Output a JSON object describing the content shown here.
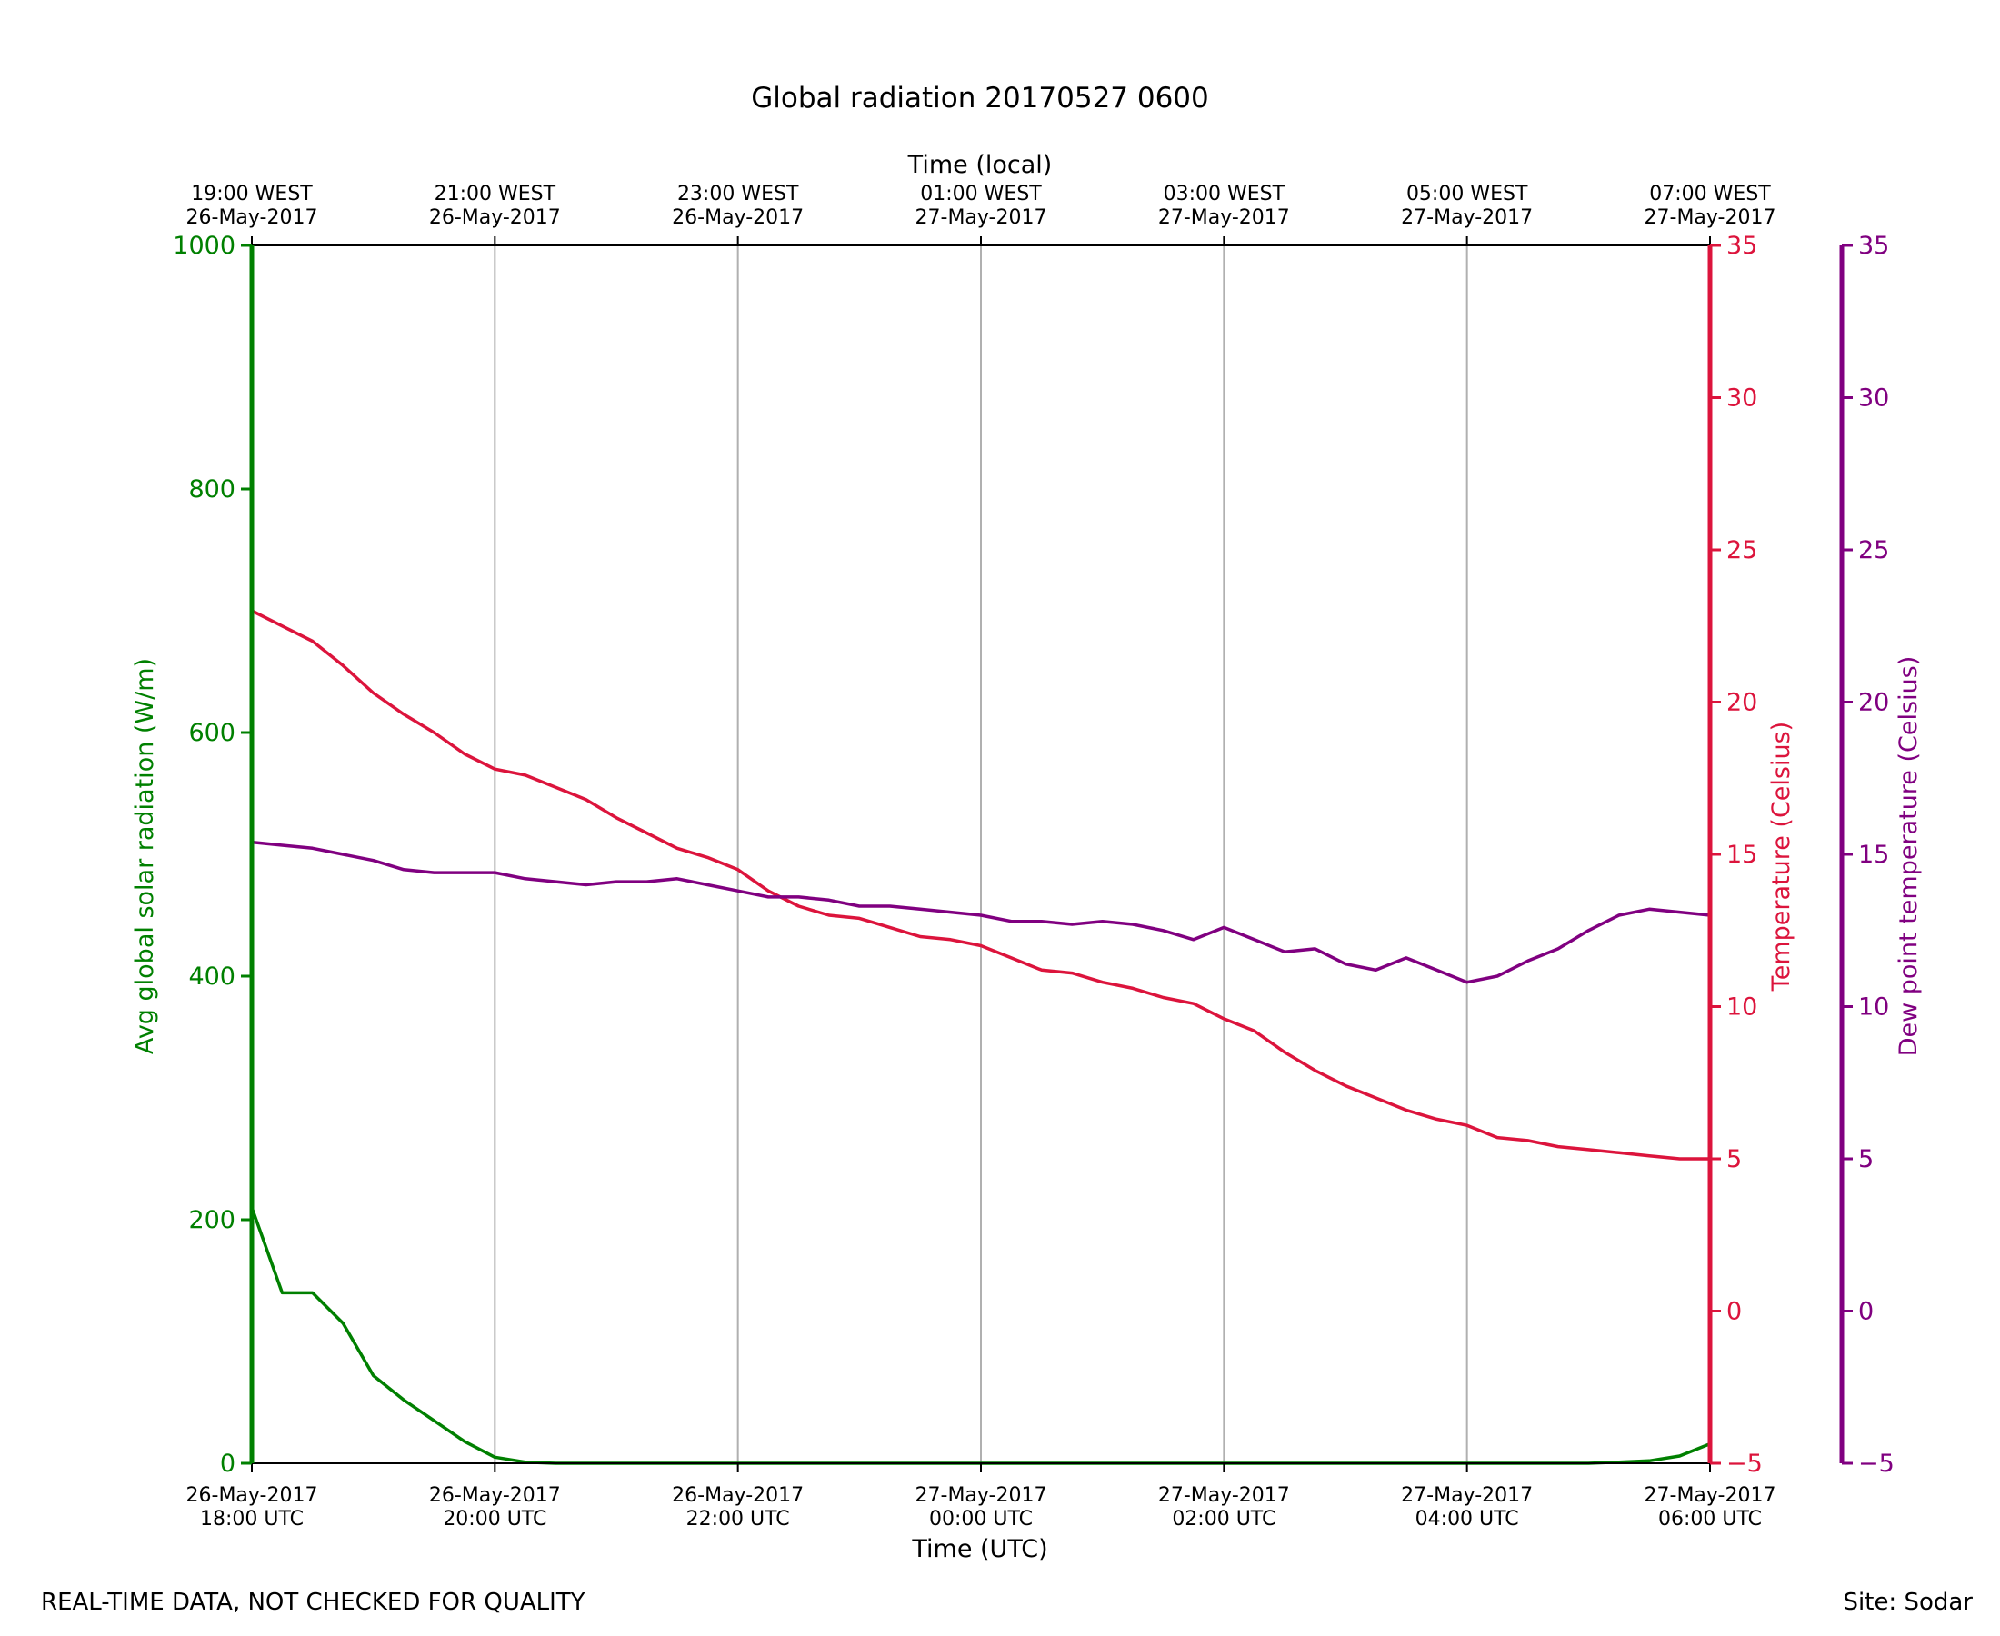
{
  "footer": {
    "quality_note": "REAL-TIME DATA, NOT CHECKED FOR QUALITY",
    "site": "Site: Sodar"
  },
  "chart_data": {
    "type": "line",
    "title": "Global radiation 20170527 0600",
    "xlabel": "Time (UTC)",
    "xlabel_top": "Time (local)",
    "grid": "vertical",
    "x_ticks_bottom": [
      {
        "date": "26-May-2017",
        "time": "18:00 UTC"
      },
      {
        "date": "26-May-2017",
        "time": "20:00 UTC"
      },
      {
        "date": "26-May-2017",
        "time": "22:00 UTC"
      },
      {
        "date": "27-May-2017",
        "time": "00:00 UTC"
      },
      {
        "date": "27-May-2017",
        "time": "02:00 UTC"
      },
      {
        "date": "27-May-2017",
        "time": "04:00 UTC"
      },
      {
        "date": "27-May-2017",
        "time": "06:00 UTC"
      }
    ],
    "x_ticks_top": [
      {
        "time": "19:00 WEST",
        "date": "26-May-2017"
      },
      {
        "time": "21:00 WEST",
        "date": "26-May-2017"
      },
      {
        "time": "23:00 WEST",
        "date": "26-May-2017"
      },
      {
        "time": "01:00 WEST",
        "date": "27-May-2017"
      },
      {
        "time": "03:00 WEST",
        "date": "27-May-2017"
      },
      {
        "time": "05:00 WEST",
        "date": "27-May-2017"
      },
      {
        "time": "07:00 WEST",
        "date": "27-May-2017"
      }
    ],
    "axes": {
      "radiation": {
        "label": "Avg global solar radiation (W/m)",
        "range": [
          0,
          1000
        ],
        "ticks": [
          "0",
          "200",
          "400",
          "600",
          "800",
          "1000"
        ],
        "color": "#008000"
      },
      "temperature": {
        "label": "Temperature (Celsius)",
        "range": [
          -5,
          35
        ],
        "ticks": [
          "−5",
          "0",
          "5",
          "10",
          "15",
          "20",
          "25",
          "30",
          "35"
        ],
        "color": "#dc143c"
      },
      "dewpoint": {
        "label": "Dew point temperature (Celsius)",
        "range": [
          -5,
          35
        ],
        "ticks": [
          "−5",
          "0",
          "5",
          "10",
          "15",
          "20",
          "25",
          "30",
          "35"
        ],
        "color": "#800080"
      }
    },
    "x": [
      "18:00",
      "18:15",
      "18:30",
      "18:45",
      "19:00",
      "19:15",
      "19:30",
      "19:45",
      "20:00",
      "20:15",
      "20:30",
      "20:45",
      "21:00",
      "21:15",
      "21:30",
      "21:45",
      "22:00",
      "22:15",
      "22:30",
      "22:45",
      "23:00",
      "23:15",
      "23:30",
      "23:45",
      "00:00",
      "00:15",
      "00:30",
      "00:45",
      "01:00",
      "01:15",
      "01:30",
      "01:45",
      "02:00",
      "02:15",
      "02:30",
      "02:45",
      "03:00",
      "03:15",
      "03:30",
      "03:45",
      "04:00",
      "04:15",
      "04:30",
      "04:45",
      "05:00",
      "05:15",
      "05:30",
      "05:45",
      "06:00"
    ],
    "series": [
      {
        "axis": "radiation",
        "color": "#008000",
        "values": [
          210,
          140,
          140,
          115,
          72,
          52,
          35,
          18,
          5,
          1,
          0,
          0,
          0,
          0,
          0,
          0,
          0,
          0,
          0,
          0,
          0,
          0,
          0,
          0,
          0,
          0,
          0,
          0,
          0,
          0,
          0,
          0,
          0,
          0,
          0,
          0,
          0,
          0,
          0,
          0,
          0,
          0,
          0,
          0,
          0,
          1,
          2,
          6,
          16
        ]
      },
      {
        "axis": "temperature",
        "color": "#dc143c",
        "values": [
          23.0,
          22.5,
          22.0,
          21.2,
          20.3,
          19.6,
          19.0,
          18.3,
          17.8,
          17.6,
          17.2,
          16.8,
          16.2,
          15.7,
          15.2,
          14.9,
          14.5,
          13.8,
          13.3,
          13.0,
          12.9,
          12.6,
          12.3,
          12.2,
          12.0,
          11.6,
          11.2,
          11.1,
          10.8,
          10.6,
          10.3,
          10.1,
          9.6,
          9.2,
          8.5,
          7.9,
          7.4,
          7.0,
          6.6,
          6.3,
          6.1,
          5.7,
          5.6,
          5.4,
          5.3,
          5.2,
          5.1,
          5.0,
          5.0
        ]
      },
      {
        "axis": "dewpoint",
        "color": "#800080",
        "values": [
          15.4,
          15.3,
          15.2,
          15.0,
          14.8,
          14.5,
          14.4,
          14.4,
          14.4,
          14.2,
          14.1,
          14.0,
          14.1,
          14.1,
          14.2,
          14.0,
          13.8,
          13.6,
          13.6,
          13.5,
          13.3,
          13.3,
          13.2,
          13.1,
          13.0,
          12.8,
          12.8,
          12.7,
          12.8,
          12.7,
          12.5,
          12.2,
          12.6,
          12.2,
          11.8,
          11.9,
          11.4,
          11.2,
          11.6,
          11.2,
          10.8,
          11.0,
          11.5,
          11.9,
          12.5,
          13.0,
          13.2,
          13.1,
          13.0
        ]
      }
    ]
  }
}
